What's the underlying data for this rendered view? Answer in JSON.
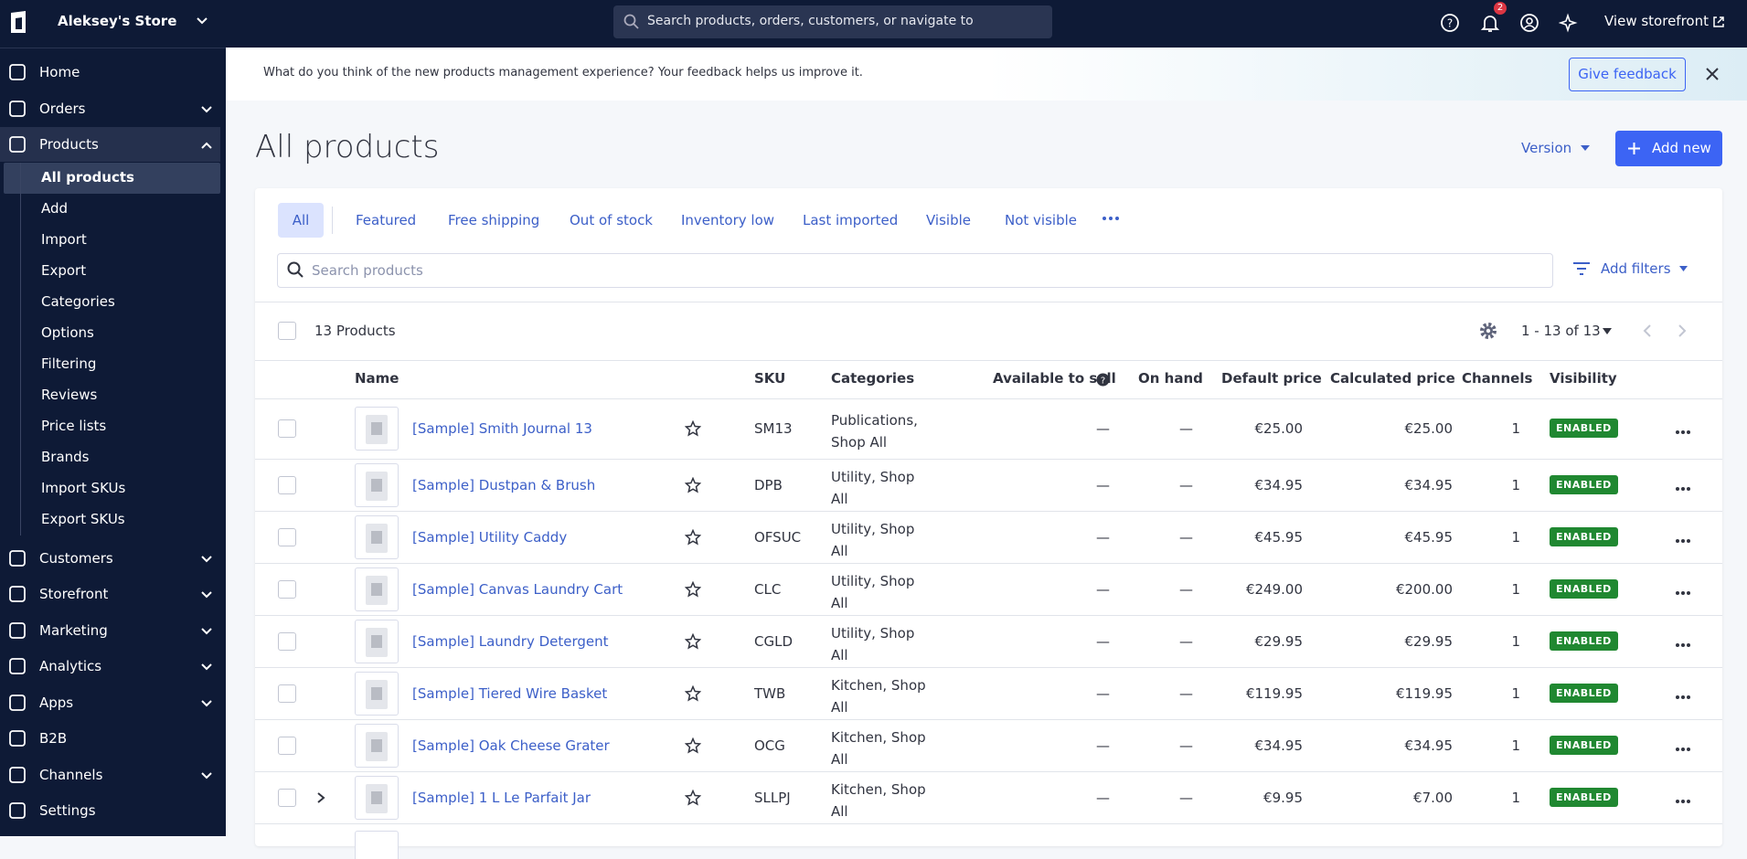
{
  "store_name": "Aleksey's Store",
  "search_placeholder": "Search products, orders, customers, or navigate to",
  "notification_count": "2",
  "view_storefront": "View storefront",
  "nav": [
    {
      "label": "Home",
      "chevron": false
    },
    {
      "label": "Orders",
      "chevron": true
    },
    {
      "label": "Products",
      "chevron": true,
      "open": true,
      "active_child": 0,
      "children": [
        "All products",
        "Add",
        "Import",
        "Export",
        "Categories",
        "Options",
        "Filtering",
        "Reviews",
        "Price lists",
        "Brands",
        "Import SKUs",
        "Export SKUs"
      ]
    },
    {
      "label": "Customers",
      "chevron": true
    },
    {
      "label": "Storefront",
      "chevron": true
    },
    {
      "label": "Marketing",
      "chevron": true
    },
    {
      "label": "Analytics",
      "chevron": true
    },
    {
      "label": "Apps",
      "chevron": true
    },
    {
      "label": "B2B",
      "chevron": false
    },
    {
      "label": "Channels",
      "chevron": true
    },
    {
      "label": "Settings",
      "chevron": false
    }
  ],
  "banner": {
    "text": "What do you think of the new products management experience? Your feedback helps us improve it.",
    "button": "Give feedback"
  },
  "page": {
    "title": "All products",
    "version": "Version",
    "add_new": "Add new"
  },
  "tabs": [
    "All",
    "Featured",
    "Free shipping",
    "Out of stock",
    "Inventory low",
    "Last imported",
    "Visible",
    "Not visible"
  ],
  "active_tab": 0,
  "search_products": "Search products",
  "add_filters": "Add filters",
  "count_label": "13 Products",
  "pagination": "1 - 13 of 13",
  "columns": [
    "Name",
    "SKU",
    "Categories",
    "Available to sell",
    "On hand",
    "Default price",
    "Calculated price",
    "Channels",
    "Visibility"
  ],
  "rows": [
    {
      "name": "[Sample] Smith Journal 13",
      "sku": "SM13",
      "categories": "Publications, Shop All",
      "available": "—",
      "on_hand": "—",
      "default_price": "€25.00",
      "calculated_price": "€25.00",
      "channels": "1",
      "visibility": "ENABLED",
      "expandable": false
    },
    {
      "name": "[Sample] Dustpan & Brush",
      "sku": "DPB",
      "categories": "Utility, Shop All",
      "available": "—",
      "on_hand": "—",
      "default_price": "€34.95",
      "calculated_price": "€34.95",
      "channels": "1",
      "visibility": "ENABLED",
      "expandable": false
    },
    {
      "name": "[Sample] Utility Caddy",
      "sku": "OFSUC",
      "categories": "Utility, Shop All",
      "available": "—",
      "on_hand": "—",
      "default_price": "€45.95",
      "calculated_price": "€45.95",
      "channels": "1",
      "visibility": "ENABLED",
      "expandable": false
    },
    {
      "name": "[Sample] Canvas Laundry Cart",
      "sku": "CLC",
      "categories": "Utility, Shop All",
      "available": "—",
      "on_hand": "—",
      "default_price": "€249.00",
      "calculated_price": "€200.00",
      "channels": "1",
      "visibility": "ENABLED",
      "expandable": false
    },
    {
      "name": "[Sample] Laundry Detergent",
      "sku": "CGLD",
      "categories": "Utility, Shop All",
      "available": "—",
      "on_hand": "—",
      "default_price": "€29.95",
      "calculated_price": "€29.95",
      "channels": "1",
      "visibility": "ENABLED",
      "expandable": false
    },
    {
      "name": "[Sample] Tiered Wire Basket",
      "sku": "TWB",
      "categories": "Kitchen, Shop All",
      "available": "—",
      "on_hand": "—",
      "default_price": "€119.95",
      "calculated_price": "€119.95",
      "channels": "1",
      "visibility": "ENABLED",
      "expandable": false
    },
    {
      "name": "[Sample] Oak Cheese Grater",
      "sku": "OCG",
      "categories": "Kitchen, Shop All",
      "available": "—",
      "on_hand": "—",
      "default_price": "€34.95",
      "calculated_price": "€34.95",
      "channels": "1",
      "visibility": "ENABLED",
      "expandable": false
    },
    {
      "name": "[Sample] 1 L Le Parfait Jar",
      "sku": "SLLPJ",
      "categories": "Kitchen, Shop All",
      "available": "—",
      "on_hand": "—",
      "default_price": "€9.95",
      "calculated_price": "€7.00",
      "channels": "1",
      "visibility": "ENABLED",
      "expandable": true
    }
  ]
}
